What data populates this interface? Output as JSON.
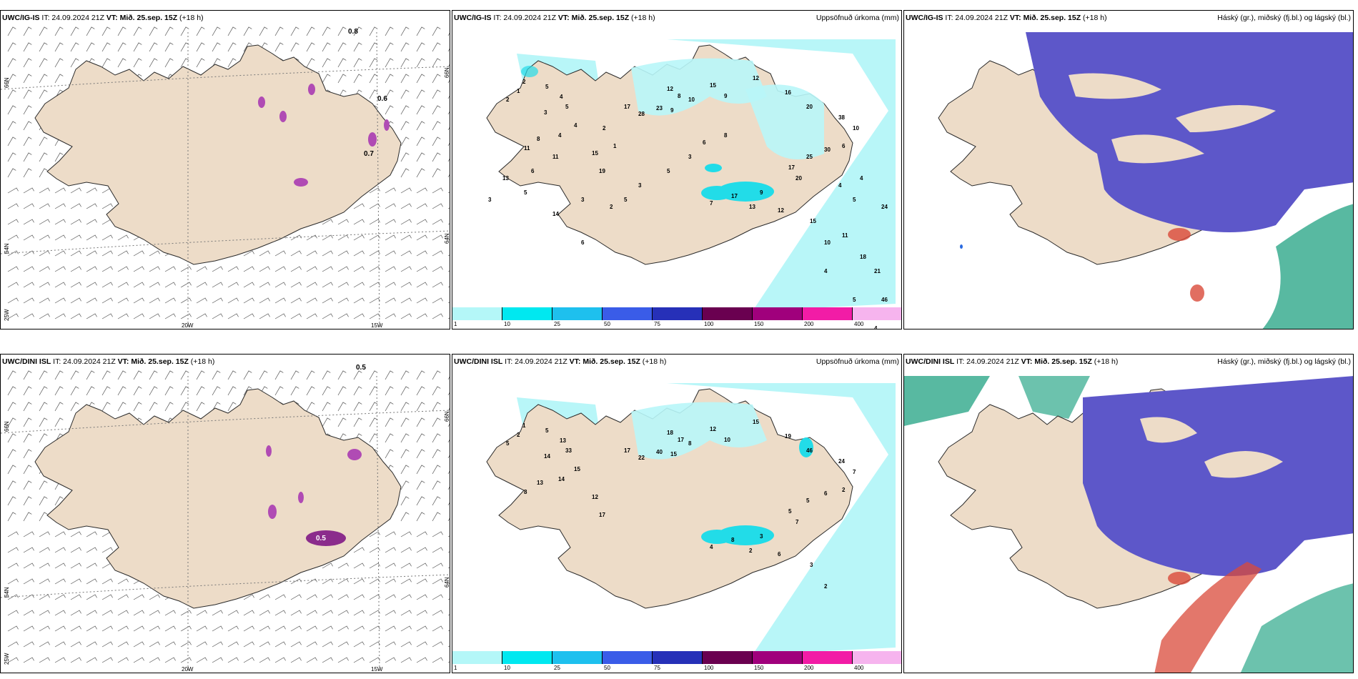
{
  "colors": {
    "land": "#eddcc8",
    "coast": "#2a2a2a",
    "precip": "#b8f6f8",
    "precip2": "#22dce8",
    "cloud_high": "#5d57c9",
    "grid": "#666666"
  },
  "panels": [
    {
      "model": "UWC/IG-IS",
      "it": "IT: 24.09.2024 21Z",
      "vt_label": "VT:",
      "vt": "Mið. 25.sep. 15Z",
      "lead": "(+18 h)",
      "right_title": "",
      "grid_labels": {
        "lat66": "66N",
        "lat64": "64N",
        "lon25": "25W",
        "lon20": "20W",
        "lon15": "15W"
      },
      "values": [
        "0.8",
        "0.6",
        "0.7"
      ]
    },
    {
      "model": "UWC/IG-IS",
      "it": "IT: 24.09.2024 21Z",
      "vt_label": "VT:",
      "vt": "Mið. 25.sep. 15Z",
      "lead": "(+18 h)",
      "right_title": "Uppsöfnuð úrkoma (mm)",
      "values": [
        "2",
        "1",
        "2",
        "5",
        "4",
        "3",
        "5",
        "4",
        "4",
        "8",
        "11",
        "15",
        "19",
        "17",
        "28",
        "23",
        "9",
        "8",
        "12",
        "10",
        "15",
        "9",
        "12",
        "16",
        "20",
        "38",
        "10",
        "6",
        "30",
        "25",
        "17",
        "20",
        "9",
        "17",
        "7",
        "13",
        "12",
        "15",
        "10",
        "11",
        "18",
        "21",
        "46",
        "24",
        "5",
        "4",
        "4",
        "4",
        "5",
        "5",
        "4",
        "5",
        "2",
        "3",
        "14",
        "5",
        "13",
        "3",
        "6",
        "11",
        "6",
        "2",
        "1",
        "3",
        "5",
        "3",
        "6",
        "8"
      ]
    },
    {
      "model": "UWC/IG-IS",
      "it": "IT: 24.09.2024 21Z",
      "vt_label": "VT:",
      "vt": "Mið. 25.sep. 15Z",
      "lead": "(+18 h)",
      "right_title": "Háský (gr.), miðský (fj.bl.) og lágský (bl.)"
    },
    {
      "model": "UWC/DINI ISL",
      "it": "IT: 24.09.2024 21Z",
      "vt_label": "VT:",
      "vt": "Mið. 25.sep. 15Z",
      "lead": "(+18 h)",
      "right_title": "",
      "grid_labels": {
        "lat66": "66N",
        "lat64": "64N",
        "lon25": "25W",
        "lon20": "20W",
        "lon15": "15W"
      },
      "values": [
        "0.5",
        "0.5"
      ]
    },
    {
      "model": "UWC/DINI ISL",
      "it": "IT: 24.09.2024 21Z",
      "vt_label": "VT:",
      "vt": "Mið. 25.sep. 15Z",
      "lead": "(+18 h)",
      "right_title": "Uppsöfnuð úrkoma (mm)",
      "values": [
        "1",
        "2",
        "5",
        "5",
        "13",
        "14",
        "33",
        "15",
        "14",
        "13",
        "8",
        "12",
        "17",
        "17",
        "22",
        "40",
        "15",
        "17",
        "18",
        "8",
        "12",
        "10",
        "15",
        "19",
        "46",
        "24",
        "7",
        "2",
        "6",
        "5",
        "5",
        "7",
        "3",
        "8",
        "4",
        "2",
        "6",
        "3",
        "2"
      ]
    },
    {
      "model": "UWC/DINI ISL",
      "it": "IT: 24.09.2024 21Z",
      "vt_label": "VT:",
      "vt": "Mið. 25.sep. 15Z",
      "lead": "(+18 h)",
      "right_title": "Háský (gr.), miðský (fj.bl.) og lágský (bl.)"
    }
  ],
  "legend": {
    "ticks": [
      "1",
      "10",
      "25",
      "50",
      "75",
      "100",
      "150",
      "200",
      "400"
    ],
    "colors": [
      "#b4f7f8",
      "#00e8f0",
      "#1ec0ee",
      "#3a5ce8",
      "#2630b8",
      "#6a0050",
      "#a0007c",
      "#f21ca6",
      "#f6b4ee"
    ]
  }
}
